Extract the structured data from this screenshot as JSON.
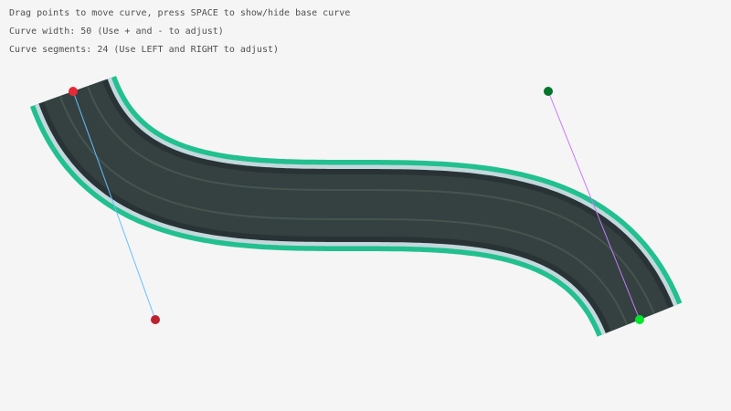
{
  "instructions": {
    "line1": "Drag points to move curve, press SPACE to show/hide base curve",
    "line2": "Curve width: 50 (Use + and - to adjust)",
    "line3": "Curve segments: 24 (Use LEFT and RIGHT to adjust)"
  },
  "curve": {
    "width": 50,
    "segments": 24,
    "start": [
      80,
      100
    ],
    "start_tangent": [
      170,
      350
    ],
    "end_tangent": [
      600,
      100
    ],
    "end": [
      700,
      350
    ]
  },
  "colors": {
    "background": "#f5f5f5",
    "road_border": "#22c08f",
    "road_edge_light": "#c3d8dc",
    "road_edge_dark": "#293335",
    "road_surface": "#344140",
    "lane_line": "#46544f",
    "start_point": "#e62937",
    "start_tangent_point": "#be2130",
    "end_tangent_point": "#00752c",
    "end_point": "#00e430",
    "start_tangent_line": "#66bfff",
    "end_tangent_line": "#c87aff",
    "text": "#505050"
  }
}
